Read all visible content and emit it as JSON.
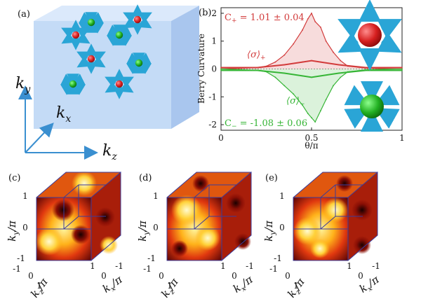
{
  "figure": {
    "panels": [
      {
        "id": "a",
        "label": "(a)",
        "axes": {
          "y": "k",
          "y_sub": "y",
          "x": "k",
          "x_sub": "x",
          "z": "k",
          "z_sub": "z"
        }
      },
      {
        "id": "b",
        "label": "(b)"
      },
      {
        "id": "c",
        "label": "(c)",
        "ky": "k",
        "ky_sub": "y",
        "ky_unit": "/π",
        "kz": "k",
        "kz_sub": "z",
        "kz_unit": "/π",
        "kx": "k",
        "kx_sub": "x",
        "kx_unit": "/π",
        "ticks": [
          "1",
          "0",
          "-1",
          "-1",
          "0",
          "1",
          "1",
          "0",
          "-1"
        ]
      },
      {
        "id": "d",
        "label": "(d)",
        "ky": "k",
        "ky_sub": "y",
        "ky_unit": "/π",
        "kz": "k",
        "kz_sub": "z",
        "kz_unit": "/π",
        "kx": "k",
        "kx_sub": "x",
        "kx_unit": "/π",
        "ticks": [
          "1",
          "0",
          "-1",
          "-1",
          "0",
          "1",
          "1",
          "0",
          "-1"
        ]
      },
      {
        "id": "e",
        "label": "(e)",
        "ky": "k",
        "ky_sub": "y",
        "ky_unit": "/π",
        "kz": "k",
        "kz_sub": "z",
        "kz_unit": "/π",
        "kx": "k",
        "kx_sub": "x",
        "kx_unit": "/π",
        "ticks": [
          "1",
          "0",
          "-1",
          "-1",
          "0",
          "1",
          "1",
          "0",
          "-1"
        ]
      }
    ],
    "colors": {
      "red": "#d23b3b",
      "green": "#36b536",
      "arrow": "#2aa5d6",
      "box": "#b8d3f3",
      "axis": "#3a8fd0"
    }
  },
  "chart_data": {
    "type": "line",
    "xlabel": "θ/π",
    "ylabel": "Berry Curvature",
    "xlim": [
      0,
      1
    ],
    "ylim": [
      -2.2,
      2.2
    ],
    "xticks": [
      "0",
      "0.5",
      "1"
    ],
    "yticks": [
      "2",
      "1",
      "0",
      "-1",
      "-2"
    ],
    "annotations": {
      "c_plus_label": "C",
      "c_plus_sub": "+",
      "c_plus_value": " = 1.01 ± 0.04",
      "c_minus_label": "C",
      "c_minus_sub": "−",
      "c_minus_value": " = -1.08 ± 0.06",
      "sigma_plus": "⟨σ⟩",
      "sigma_plus_sub": "+",
      "sigma_minus": "⟨σ⟩",
      "sigma_minus_sub": "−"
    },
    "series": [
      {
        "color": "#d23b3b",
        "x": [
          0,
          0.1,
          0.2,
          0.25,
          0.3,
          0.35,
          0.4,
          0.45,
          0.48,
          0.5,
          0.52,
          0.55,
          0.58,
          0.62,
          0.66,
          0.7,
          0.8,
          0.9,
          1.0
        ],
        "values": [
          0,
          0.02,
          0.05,
          0.1,
          0.25,
          0.5,
          0.9,
          1.4,
          1.8,
          2.0,
          1.7,
          1.5,
          1.0,
          0.6,
          0.3,
          0.1,
          0.03,
          0.01,
          0
        ]
      },
      {
        "color": "#36b536",
        "x": [
          0,
          0.1,
          0.2,
          0.25,
          0.3,
          0.35,
          0.4,
          0.45,
          0.48,
          0.5,
          0.52,
          0.55,
          0.58,
          0.62,
          0.66,
          0.7,
          0.8,
          0.9,
          1.0
        ],
        "values": [
          0,
          -0.02,
          -0.05,
          -0.1,
          -0.3,
          -0.6,
          -0.9,
          -1.3,
          -1.6,
          -1.75,
          -1.9,
          -1.5,
          -1.1,
          -0.6,
          -0.3,
          -0.1,
          -0.03,
          -0.01,
          0
        ]
      },
      {
        "color": "#d23b3b",
        "x": [
          0,
          0.2,
          0.35,
          0.45,
          0.5,
          0.55,
          0.65,
          0.8,
          1.0
        ],
        "values": [
          0.05,
          0.05,
          0.15,
          0.25,
          0.3,
          0.25,
          0.15,
          0.05,
          0.05
        ]
      },
      {
        "color": "#36b536",
        "x": [
          0,
          0.2,
          0.35,
          0.45,
          0.5,
          0.55,
          0.65,
          0.8,
          1.0
        ],
        "values": [
          -0.05,
          -0.05,
          -0.15,
          -0.25,
          -0.3,
          -0.25,
          -0.15,
          -0.05,
          -0.05
        ]
      }
    ]
  }
}
